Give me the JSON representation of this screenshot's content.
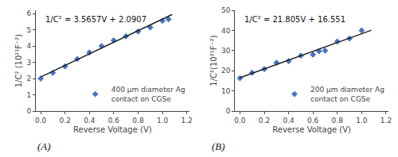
{
  "chart_data": [
    {
      "type": "scatter",
      "xlabel": "Reverse Voltage (V)",
      "ylabel": "1/C² (10²¹F⁻²)",
      "annotations": [
        "1/C² = 3.5657V + 2.0907"
      ],
      "panel_label": "(A)",
      "series": [
        {
          "name": "400 µm diameter Ag\ncontact on CGSe",
          "type": "scatter",
          "marker": "diamond",
          "color": "#4472C4",
          "x": [
            0.0,
            0.1,
            0.2,
            0.3,
            0.4,
            0.5,
            0.6,
            0.7,
            0.8,
            0.9,
            1.0,
            1.05
          ],
          "values": [
            2.0,
            2.35,
            2.75,
            3.2,
            3.6,
            4.0,
            4.35,
            4.6,
            4.9,
            5.15,
            5.55,
            5.65
          ]
        },
        {
          "type": "line",
          "line_style": "solid",
          "color": "#222222",
          "x": [
            0.0,
            1.08
          ],
          "values": [
            2.0907,
            5.941656
          ]
        }
      ],
      "xlim": [
        -0.04,
        1.22
      ],
      "ylim": [
        0,
        6.2
      ],
      "xticks": [
        {
          "value": 0,
          "label": "0.0"
        },
        0.2,
        0.4,
        0.6,
        0.8,
        {
          "value": 1.0,
          "label": "1.0"
        },
        1.2
      ],
      "yticks": [
        0,
        1,
        2,
        3,
        4,
        5,
        6
      ],
      "grid": false,
      "legend": "lower right"
    },
    {
      "type": "scatter",
      "xlabel": "Reverse Voltage (V)",
      "ylabel": "1/C²(10²¹F⁻²)",
      "annotations": [
        "1/C² = 21.805V + 16.551"
      ],
      "panel_label": "(B)",
      "series": [
        {
          "name": "200 µm diameter Ag\ncontact on CGSe",
          "type": "scatter",
          "marker": "diamond",
          "color": "#4472C4",
          "x": [
            0.0,
            0.1,
            0.2,
            0.3,
            0.4,
            0.5,
            0.6,
            0.65,
            0.7,
            0.8,
            0.9,
            1.0
          ],
          "values": [
            16.3,
            19.0,
            20.8,
            24.0,
            24.8,
            27.5,
            28.0,
            29.7,
            30.0,
            34.5,
            36.0,
            40.0
          ]
        },
        {
          "type": "line",
          "line_style": "solid",
          "color": "#222222",
          "x": [
            0.0,
            1.08
          ],
          "values": [
            16.551,
            40.1004
          ]
        }
      ],
      "xlim": [
        -0.04,
        1.22
      ],
      "ylim": [
        0,
        50
      ],
      "xticks": [
        {
          "value": 0,
          "label": "0.0"
        },
        0.2,
        0.4,
        0.6,
        0.8,
        {
          "value": 1.0,
          "label": "1.0"
        },
        1.2
      ],
      "yticks": [
        0,
        10,
        20,
        30,
        40,
        50
      ],
      "grid": false,
      "legend": "lower right"
    }
  ]
}
